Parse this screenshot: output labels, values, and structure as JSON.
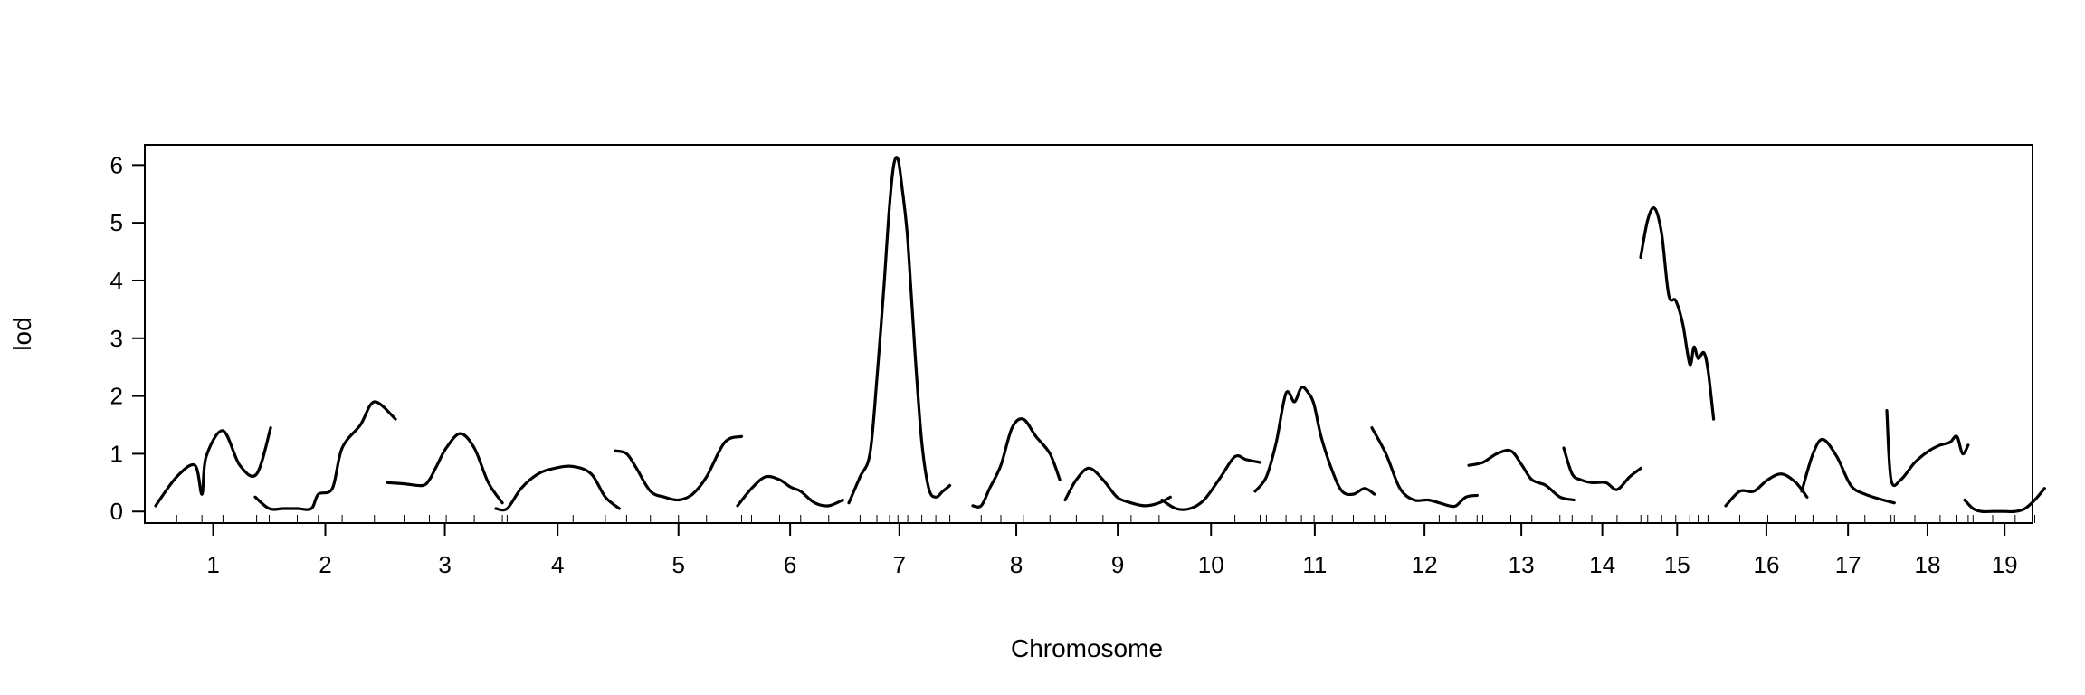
{
  "chart_data": {
    "type": "line",
    "title": "",
    "xlabel": "Chromosome",
    "ylabel": "lod",
    "ylim": [
      -0.2,
      6.35
    ],
    "y_ticks": [
      0,
      1,
      2,
      3,
      4,
      5,
      6
    ],
    "grid": false,
    "legend": "none",
    "line_color": "#000000",
    "categories": [
      "1",
      "2",
      "3",
      "4",
      "5",
      "6",
      "7",
      "8",
      "9",
      "10",
      "11",
      "12",
      "13",
      "14",
      "15",
      "16",
      "17",
      "18",
      "19"
    ],
    "series": [
      {
        "chromosome": "1",
        "x": [
          0.0,
          0.15,
          0.28,
          0.33,
          0.36,
          0.48,
          0.6,
          0.72,
          0.82
        ],
        "y": [
          0.1,
          0.6,
          0.8,
          0.3,
          0.95,
          1.4,
          0.8,
          0.65,
          1.45
        ]
      },
      {
        "chromosome": "2",
        "x": [
          0.0,
          0.1,
          0.2,
          0.3,
          0.4,
          0.45,
          0.55,
          0.62,
          0.75,
          0.85,
          1.0
        ],
        "y": [
          0.25,
          0.05,
          0.05,
          0.05,
          0.05,
          0.3,
          0.4,
          1.1,
          1.5,
          1.9,
          1.6
        ]
      },
      {
        "chromosome": "3",
        "x": [
          0.0,
          0.12,
          0.25,
          0.3,
          0.35,
          0.42,
          0.52,
          0.62,
          0.72,
          0.82
        ],
        "y": [
          0.5,
          0.48,
          0.45,
          0.55,
          0.78,
          1.1,
          1.35,
          1.1,
          0.5,
          0.15
        ]
      },
      {
        "chromosome": "4",
        "x": [
          0.0,
          0.08,
          0.18,
          0.3,
          0.42,
          0.55,
          0.68,
          0.78,
          0.88
        ],
        "y": [
          0.05,
          0.05,
          0.4,
          0.65,
          0.75,
          0.78,
          0.65,
          0.25,
          0.05
        ]
      },
      {
        "chromosome": "5",
        "x": [
          0.0,
          0.08,
          0.15,
          0.25,
          0.35,
          0.45,
          0.55,
          0.65,
          0.78,
          0.9
        ],
        "y": [
          1.05,
          1.0,
          0.75,
          0.35,
          0.25,
          0.2,
          0.3,
          0.6,
          1.2,
          1.3
        ]
      },
      {
        "chromosome": "6",
        "x": [
          0.0,
          0.1,
          0.2,
          0.3,
          0.38,
          0.45,
          0.55,
          0.65,
          0.75
        ],
        "y": [
          0.1,
          0.4,
          0.6,
          0.55,
          0.42,
          0.35,
          0.15,
          0.1,
          0.2
        ]
      },
      {
        "chromosome": "7",
        "x": [
          0.0,
          0.08,
          0.15,
          0.2,
          0.25,
          0.29,
          0.32,
          0.35,
          0.38,
          0.42,
          0.47,
          0.52,
          0.57,
          0.62,
          0.67,
          0.72
        ],
        "y": [
          0.15,
          0.6,
          1.0,
          2.3,
          3.9,
          5.3,
          6.0,
          6.1,
          5.6,
          4.7,
          2.8,
          1.2,
          0.4,
          0.25,
          0.35,
          0.45
        ]
      },
      {
        "chromosome": "8",
        "x": [
          0.0,
          0.06,
          0.12,
          0.2,
          0.28,
          0.36,
          0.45,
          0.55,
          0.62
        ],
        "y": [
          0.1,
          0.1,
          0.4,
          0.8,
          1.45,
          1.6,
          1.3,
          1.0,
          0.55
        ]
      },
      {
        "chromosome": "9",
        "x": [
          0.0,
          0.08,
          0.17,
          0.27,
          0.37,
          0.47,
          0.57,
          0.67,
          0.75
        ],
        "y": [
          0.2,
          0.55,
          0.75,
          0.55,
          0.25,
          0.15,
          0.1,
          0.15,
          0.25
        ]
      },
      {
        "chromosome": "10",
        "x": [
          0.0,
          0.1,
          0.2,
          0.3,
          0.42,
          0.52,
          0.6,
          0.7
        ],
        "y": [
          0.2,
          0.05,
          0.05,
          0.2,
          0.6,
          0.95,
          0.9,
          0.85
        ]
      },
      {
        "chromosome": "11",
        "x": [
          0.0,
          0.08,
          0.15,
          0.22,
          0.28,
          0.33,
          0.38,
          0.42,
          0.47,
          0.55,
          0.62,
          0.7,
          0.78,
          0.85
        ],
        "y": [
          0.35,
          0.6,
          1.2,
          2.05,
          1.9,
          2.15,
          2.05,
          1.85,
          1.3,
          0.7,
          0.35,
          0.3,
          0.4,
          0.3
        ]
      },
      {
        "chromosome": "12",
        "x": [
          0.0,
          0.1,
          0.2,
          0.3,
          0.4,
          0.48,
          0.55,
          0.6,
          0.67,
          0.75
        ],
        "y": [
          1.45,
          1.0,
          0.4,
          0.2,
          0.2,
          0.15,
          0.1,
          0.1,
          0.25,
          0.28
        ]
      },
      {
        "chromosome": "13",
        "x": [
          0.0,
          0.1,
          0.2,
          0.3,
          0.38,
          0.45,
          0.55,
          0.65,
          0.75
        ],
        "y": [
          0.8,
          0.85,
          1.0,
          1.05,
          0.8,
          0.55,
          0.45,
          0.25,
          0.2
        ]
      },
      {
        "chromosome": "14",
        "x": [
          0.0,
          0.06,
          0.12,
          0.2,
          0.3,
          0.38,
          0.47,
          0.55
        ],
        "y": [
          1.1,
          0.65,
          0.55,
          0.5,
          0.5,
          0.38,
          0.6,
          0.75
        ]
      },
      {
        "chromosome": "15",
        "x": [
          0.0,
          0.05,
          0.1,
          0.15,
          0.2,
          0.25,
          0.3,
          0.35,
          0.38,
          0.41,
          0.45,
          0.48,
          0.52
        ],
        "y": [
          4.4,
          5.05,
          5.25,
          4.8,
          3.75,
          3.65,
          3.25,
          2.55,
          2.85,
          2.65,
          2.75,
          2.45,
          1.6
        ]
      },
      {
        "chromosome": "16",
        "x": [
          0.0,
          0.1,
          0.2,
          0.3,
          0.4,
          0.5,
          0.58
        ],
        "y": [
          0.1,
          0.35,
          0.35,
          0.55,
          0.65,
          0.5,
          0.25
        ]
      },
      {
        "chromosome": "17",
        "x": [
          0.0,
          0.08,
          0.15,
          0.25,
          0.35,
          0.45,
          0.58,
          0.66
        ],
        "y": [
          0.35,
          1.0,
          1.25,
          0.95,
          0.45,
          0.3,
          0.2,
          0.15
        ]
      },
      {
        "chromosome": "18",
        "x": [
          0.0,
          0.03,
          0.1,
          0.2,
          0.3,
          0.38,
          0.45,
          0.5,
          0.54,
          0.58
        ],
        "y": [
          1.75,
          0.55,
          0.55,
          0.85,
          1.05,
          1.15,
          1.2,
          1.3,
          1.0,
          1.15
        ]
      },
      {
        "chromosome": "19",
        "x": [
          0.0,
          0.06,
          0.12,
          0.2,
          0.28,
          0.36,
          0.43,
          0.5,
          0.57
        ],
        "y": [
          0.2,
          0.05,
          0.0,
          0.0,
          0.0,
          0.0,
          0.05,
          0.2,
          0.4
        ]
      }
    ]
  }
}
